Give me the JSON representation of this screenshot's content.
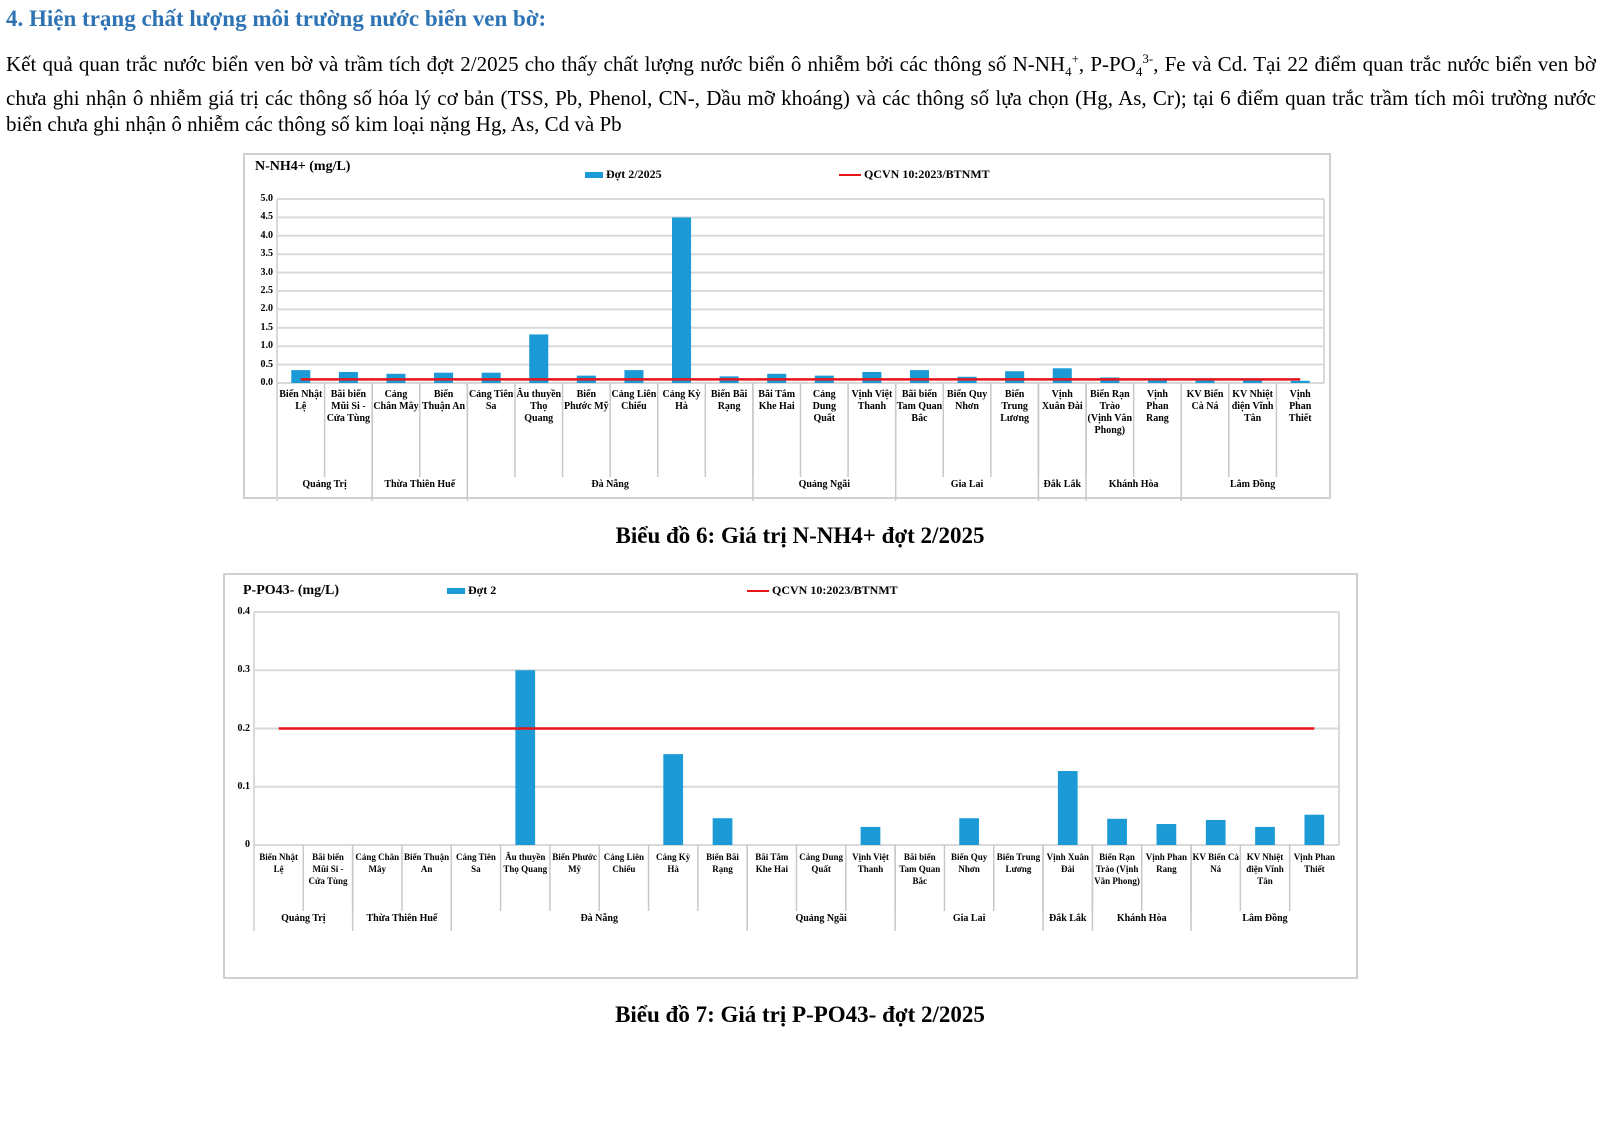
{
  "heading": "4.  Hiện trạng chất lượng môi trường nước biển ven bờ:",
  "paragraph": {
    "p1": "Kết quả quan trắc nước biển ven bờ và trầm tích đợt 2/2025 cho thấy chất lượng nước biển ô nhiễm bởi các thông số N-NH",
    "p1_sub": "4",
    "p1_sup": "+",
    "p2": ", P-PO",
    "p2_sub": "4",
    "p2_sup": "3-",
    "p3": ", Fe và Cd. Tại 22 điểm quan trắc nước biển ven bờ chưa ghi nhận ô nhiễm giá trị các thông số hóa lý cơ bản (TSS, Pb, Phenol, CN-, Dầu mỡ khoáng) và các thông số lựa chọn (Hg, As, Cr); tại 6 điểm quan trắc trầm tích môi trường nước biển chưa ghi nhận ô nhiễm các thông số kim loại nặng Hg, As, Cd và Pb"
  },
  "captions": [
    "Biểu đồ 6: Giá trị N-NH4+ đợt 2/2025",
    "Biểu đồ 7: Giá trị P-PO43- đợt 2/2025"
  ],
  "colors": {
    "bar": "#1b9ad6",
    "limit": "#e8141b",
    "heading": "#2e74b5"
  },
  "chart_data": [
    {
      "type": "bar",
      "title": "N-NH4+ (mg/L)",
      "legend": [
        {
          "name": "Đợt 2/2025",
          "kind": "bar"
        },
        {
          "name": "QCVN 10:2023/BTNMT",
          "kind": "line"
        }
      ],
      "legend_placement": "top",
      "ylim": [
        0,
        5.0
      ],
      "yticks": [
        "0.0",
        "0.5",
        "1.0",
        "1.5",
        "2.0",
        "2.5",
        "3.0",
        "3.5",
        "4.0",
        "4.5",
        "5.0"
      ],
      "grid": true,
      "categories": [
        "Biển Nhật Lệ",
        "Bãi biển Mũi Si - Cửa Tùng",
        "Cảng Chân Mây",
        "Biển Thuận An",
        "Cảng Tiên Sa",
        "Âu thuyền Thọ Quang",
        "Biển Phước Mỹ",
        "Cảng Liên Chiểu",
        "Cảng Kỳ Hà",
        "Biển Bãi Rạng",
        "Bãi Tắm Khe Hai",
        "Cảng Dung Quất",
        "Vịnh Việt Thanh",
        "Bãi biển Tam Quan Bắc",
        "Biển Quy Nhơn",
        "Biển Trung Lương",
        "Vịnh Xuân Đài",
        "Biển Rạn Trào (Vịnh Vân Phong)",
        "Vịnh Phan Rang",
        "KV Biển Cà Ná",
        "KV Nhiệt điện Vĩnh Tân",
        "Vịnh Phan Thiết"
      ],
      "groups": [
        {
          "name": "Quảng Trị",
          "count": 2
        },
        {
          "name": "Thừa Thiên Huế",
          "count": 2
        },
        {
          "name": "Đà Nẵng",
          "count": 6
        },
        {
          "name": "Quảng Ngãi",
          "count": 3
        },
        {
          "name": "Gia Lai",
          "count": 3
        },
        {
          "name": "Đắk Lắk",
          "count": 1
        },
        {
          "name": "Khánh Hòa",
          "count": 2
        },
        {
          "name": "Lâm Đồng",
          "count": 3
        }
      ],
      "series": [
        {
          "name": "Đợt 2/2025",
          "values": [
            0.35,
            0.3,
            0.25,
            0.28,
            0.28,
            1.32,
            0.2,
            0.35,
            4.5,
            0.18,
            0.25,
            0.2,
            0.3,
            0.35,
            0.17,
            0.32,
            0.4,
            0.15,
            0.1,
            0.1,
            0.1,
            0.06
          ]
        }
      ],
      "limit": {
        "name": "QCVN 10:2023/BTNMT",
        "value": 0.1
      }
    },
    {
      "type": "bar",
      "title": "P-PO43- (mg/L)",
      "legend": [
        {
          "name": "Đợt 2",
          "kind": "bar"
        },
        {
          "name": "QCVN 10:2023/BTNMT",
          "kind": "line"
        }
      ],
      "legend_placement": "top",
      "ylim": [
        0,
        0.4
      ],
      "yticks": [
        "0",
        "0.1",
        "0.2",
        "0.3",
        "0.4"
      ],
      "grid": true,
      "categories": [
        "Biển Nhật Lệ",
        "Bãi biển Mũi Si - Cửa Tùng",
        "Cảng Chân Mây",
        "Biển Thuận An",
        "Cảng Tiên Sa",
        "Âu thuyền Thọ Quang",
        "Biển Phước Mỹ",
        "Cảng Liên Chiểu",
        "Cảng Kỳ Hà",
        "Biển Bãi Rạng",
        "Bãi Tắm Khe Hai",
        "Cảng Dung Quất",
        "Vịnh Việt Thanh",
        "Bãi biển Tam Quan Bắc",
        "Biển Quy Nhơn",
        "Biển Trung Lương",
        "Vịnh Xuân Đài",
        "Biển Rạn Trào (Vịnh Vân Phong)",
        "Vịnh Phan Rang",
        "KV Biển Cà Ná",
        "KV Nhiệt điện Vĩnh Tân",
        "Vịnh Phan Thiết"
      ],
      "groups": [
        {
          "name": "Quảng Trị",
          "count": 2
        },
        {
          "name": "Thừa Thiên Huế",
          "count": 2
        },
        {
          "name": "Đà Nẵng",
          "count": 6
        },
        {
          "name": "Quảng Ngãi",
          "count": 3
        },
        {
          "name": "Gia Lai",
          "count": 3
        },
        {
          "name": "Đắk Lắk",
          "count": 1
        },
        {
          "name": "Khánh Hòa",
          "count": 2
        },
        {
          "name": "Lâm Đồng",
          "count": 3
        }
      ],
      "series": [
        {
          "name": "Đợt 2",
          "values": [
            0,
            0,
            0,
            0,
            0,
            0.3,
            0,
            0,
            0.156,
            0.046,
            0,
            0,
            0.031,
            0,
            0.046,
            0,
            0.127,
            0.045,
            0.036,
            0.043,
            0.031,
            0.052
          ]
        }
      ],
      "limit": {
        "name": "QCVN 10:2023/BTNMT",
        "value": 0.2
      }
    }
  ]
}
